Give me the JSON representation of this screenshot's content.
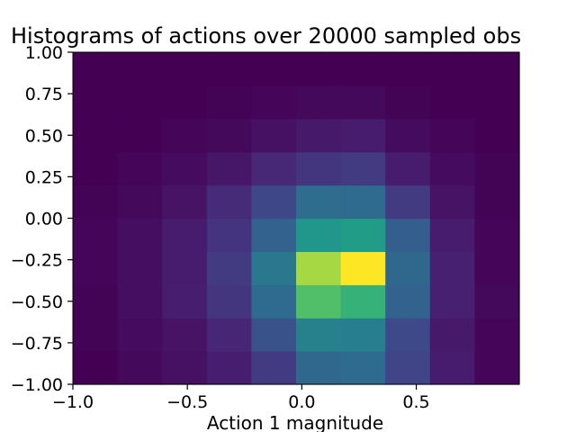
{
  "chart_data": {
    "type": "heatmap",
    "title": "Histograms of actions over 20000 sampled obs",
    "xlabel": "Action 1 magnitude",
    "ylabel": "",
    "xlim": [
      -1.0,
      0.95
    ],
    "ylim": [
      -1.0,
      1.0
    ],
    "x_bin_edges": [
      -1.0,
      -0.805,
      -0.61,
      -0.415,
      -0.22,
      -0.025,
      0.17,
      0.365,
      0.56,
      0.755,
      0.95
    ],
    "y_bin_edges": [
      -1.0,
      -0.8,
      -0.6,
      -0.4,
      -0.2,
      0.0,
      0.2,
      0.4,
      0.6,
      0.8,
      1.0
    ],
    "xticks": [
      {
        "value": -1.0,
        "label": "−1.0"
      },
      {
        "value": -0.5,
        "label": "−0.5"
      },
      {
        "value": 0.0,
        "label": "0.0"
      },
      {
        "value": 0.5,
        "label": "0.5"
      }
    ],
    "yticks": [
      {
        "value": -1.0,
        "label": "−1.00"
      },
      {
        "value": -0.75,
        "label": "−0.75"
      },
      {
        "value": -0.5,
        "label": "−0.50"
      },
      {
        "value": -0.25,
        "label": "−0.25"
      },
      {
        "value": 0.0,
        "label": "0.00"
      },
      {
        "value": 0.25,
        "label": "0.25"
      },
      {
        "value": 0.5,
        "label": "0.50"
      },
      {
        "value": 0.75,
        "label": "0.75"
      },
      {
        "value": 1.0,
        "label": "1.00"
      }
    ],
    "colormap": "viridis",
    "values_note_free": true,
    "values": [
      [
        0.0,
        0.03,
        0.06,
        0.11,
        0.22,
        0.42,
        0.44,
        0.26,
        0.1,
        0.02
      ],
      [
        0.01,
        0.04,
        0.07,
        0.14,
        0.32,
        0.55,
        0.53,
        0.28,
        0.09,
        0.02
      ],
      [
        0.01,
        0.05,
        0.11,
        0.2,
        0.44,
        0.82,
        0.78,
        0.4,
        0.12,
        0.03
      ],
      [
        0.02,
        0.05,
        0.1,
        0.22,
        0.5,
        0.92,
        1.0,
        0.42,
        0.12,
        0.02
      ],
      [
        0.02,
        0.05,
        0.1,
        0.19,
        0.4,
        0.66,
        0.7,
        0.38,
        0.1,
        0.02
      ],
      [
        0.01,
        0.03,
        0.07,
        0.16,
        0.27,
        0.45,
        0.44,
        0.22,
        0.07,
        0.01
      ],
      [
        0.0,
        0.02,
        0.04,
        0.08,
        0.15,
        0.2,
        0.22,
        0.1,
        0.04,
        0.01
      ],
      [
        0.0,
        0.0,
        0.02,
        0.03,
        0.06,
        0.09,
        0.1,
        0.04,
        0.02,
        0.0
      ],
      [
        0.0,
        0.0,
        0.0,
        0.01,
        0.02,
        0.03,
        0.03,
        0.01,
        0.0,
        0.0
      ],
      [
        0.0,
        0.0,
        0.0,
        0.0,
        0.0,
        0.0,
        0.0,
        0.0,
        0.0,
        0.0
      ]
    ]
  }
}
